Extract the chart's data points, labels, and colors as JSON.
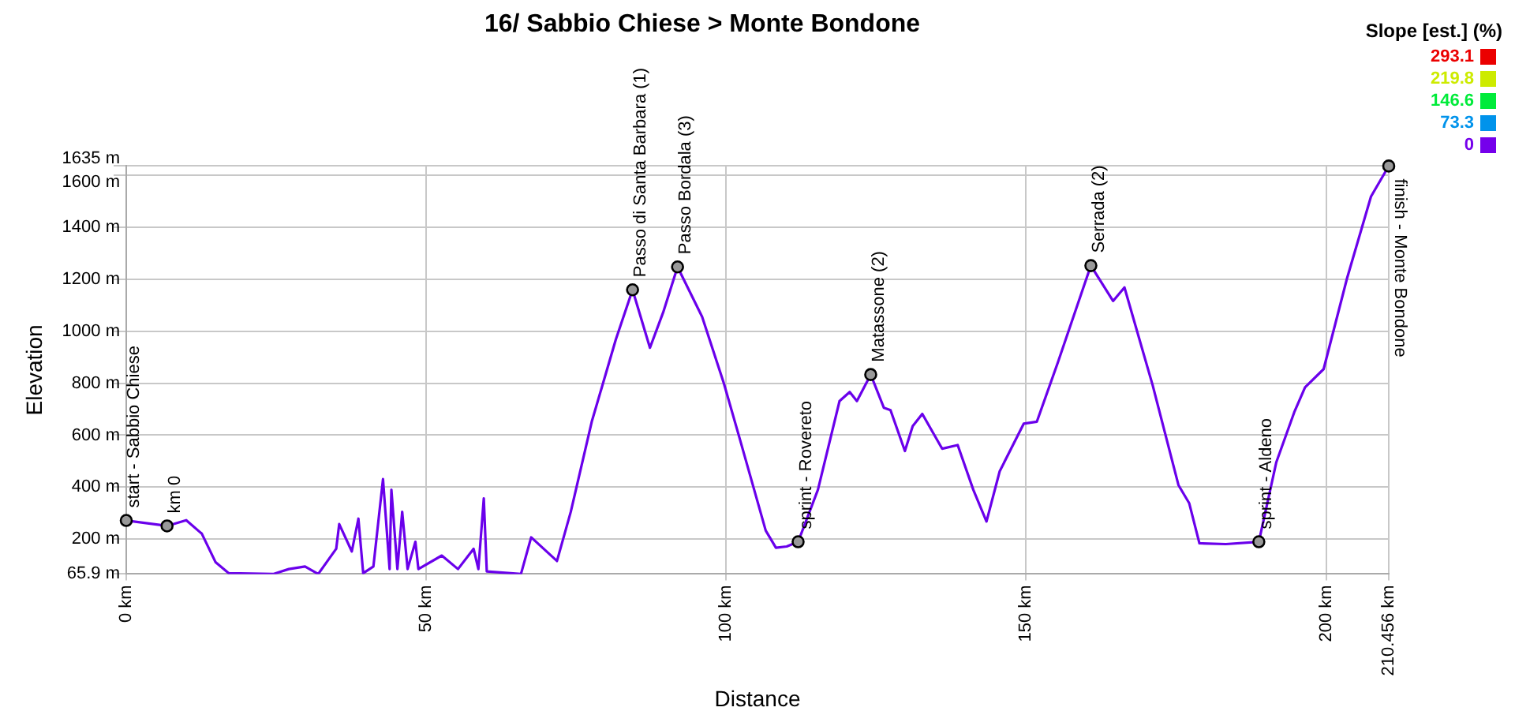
{
  "chart_data": {
    "type": "line",
    "title": "16/ Sabbio Chiese > Monte Bondone",
    "xlabel": "Distance",
    "ylabel": "Elevation",
    "clabel": "Slope [est.] (%)",
    "clim": [
      0,
      293.1
    ],
    "cticks": [
      0,
      73.3,
      146.6,
      219.8,
      293.1
    ],
    "x": [
      0,
      6.8,
      10,
      12.6,
      14.9,
      17.1,
      24.5,
      27.1,
      29.8,
      32,
      35,
      35.5,
      37.6,
      38.7,
      39.5,
      41.2,
      42.8,
      43.9,
      44.2,
      45.2,
      46,
      46.9,
      48.2,
      48.7,
      52.6,
      55.3,
      57.9,
      58.7,
      59.6,
      60.1,
      65.8,
      67.5,
      71.8,
      74.1,
      77.6,
      81.6,
      84.4,
      87.3,
      89.5,
      91.9,
      96,
      99.6,
      102.2,
      106.6,
      108.3,
      110.1,
      112,
      115.3,
      118.9,
      120.6,
      121.8,
      124.1,
      126.3,
      127.4,
      129.8,
      131.1,
      132.7,
      136,
      138.6,
      141.2,
      143.4,
      145.6,
      149.6,
      151.8,
      155.3,
      160.8,
      164.5,
      166.4,
      171.1,
      175.4,
      177.2,
      178.9,
      183.3,
      188.8,
      191.7,
      194.7,
      196.5,
      199.6,
      203.5,
      207.5,
      210.456
    ],
    "series": [
      {
        "color": "#6a00eb",
        "values": [
          272,
          251,
          273,
          221,
          111,
          69,
          66,
          85,
          95,
          66,
          163,
          258,
          153,
          279,
          69,
          95,
          431,
          85,
          390,
          85,
          305,
          85,
          190,
          85,
          137,
          85,
          163,
          85,
          357,
          76,
          66,
          207,
          116,
          305,
          652,
          967,
          1159,
          936,
          1072,
          1247,
          1055,
          801,
          592,
          233,
          167,
          172,
          190,
          390,
          731,
          766,
          731,
          833,
          705,
          696,
          539,
          635,
          682,
          548,
          562,
          390,
          268,
          461,
          644,
          652,
          880,
          1252,
          1116,
          1168,
          792,
          408,
          338,
          184,
          181,
          190,
          495,
          688,
          784,
          854,
          1203,
          1518,
          1635
        ]
      }
    ],
    "xlim": [
      0,
      210.456
    ],
    "ylim": [
      65.9,
      1635
    ],
    "xticks": [
      {
        "value": 0,
        "label": "0 km"
      },
      {
        "value": 50,
        "label": "50 km"
      },
      {
        "value": 100,
        "label": "100 km"
      },
      {
        "value": 150,
        "label": "150 km"
      },
      {
        "value": 200,
        "label": "200 km"
      },
      {
        "value": 210.456,
        "label": "210.456 km"
      }
    ],
    "yticks": [
      {
        "value": 65.9,
        "label": "65.9 m"
      },
      {
        "value": 200,
        "label": "200 m"
      },
      {
        "value": 400,
        "label": "400 m"
      },
      {
        "value": 600,
        "label": "600 m"
      },
      {
        "value": 800,
        "label": "800 m"
      },
      {
        "value": 1000,
        "label": "1000 m"
      },
      {
        "value": 1200,
        "label": "1200 m"
      },
      {
        "value": 1400,
        "label": "1400 m"
      },
      {
        "value": 1600,
        "label": "1600 m"
      },
      {
        "value": 1635,
        "label": "1635 m"
      }
    ],
    "grid": true,
    "marker": "none",
    "line_style": "solid",
    "annotations": [
      {
        "text": "start - Sabbio Chiese",
        "x": 0,
        "y": 272
      },
      {
        "text": "km 0",
        "x": 6.8,
        "y": 251
      },
      {
        "text": "Passo di Santa Barbara (1)",
        "x": 84.4,
        "y": 1159
      },
      {
        "text": "Passo Bordala (3)",
        "x": 91.9,
        "y": 1247
      },
      {
        "text": "sprint - Rovereto",
        "x": 112,
        "y": 190
      },
      {
        "text": "Matassone (2)",
        "x": 124.1,
        "y": 833
      },
      {
        "text": "Serrada (2)",
        "x": 160.8,
        "y": 1252
      },
      {
        "text": "sprint - Aldeno",
        "x": 188.8,
        "y": 190
      },
      {
        "text": "finish - Monte Bondone",
        "x": 210.456,
        "y": 1635
      }
    ]
  }
}
